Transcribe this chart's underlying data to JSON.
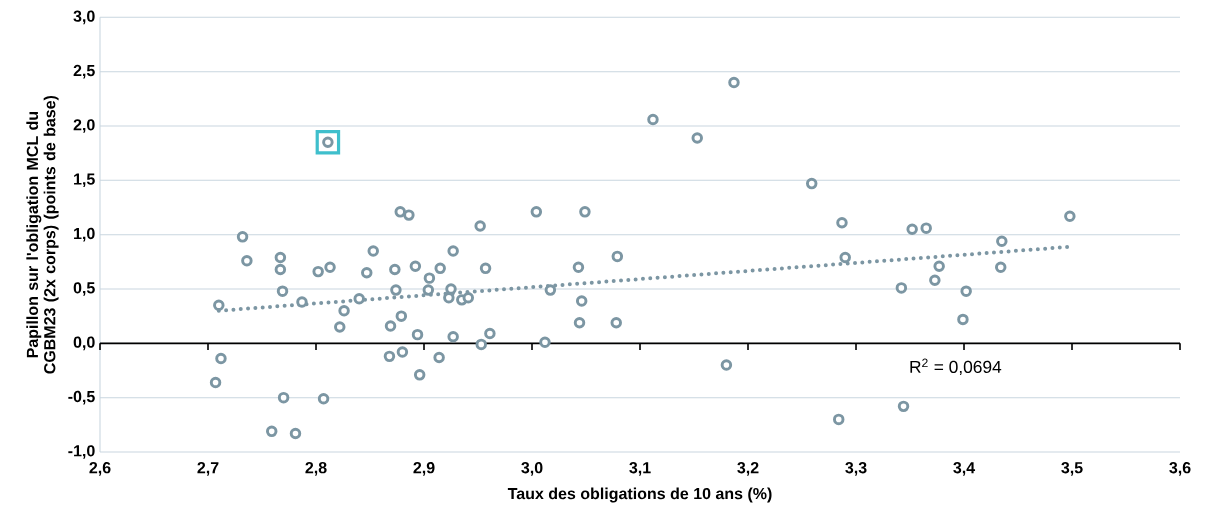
{
  "chart_data": {
    "type": "scatter",
    "xlabel": "Taux des obligations de 10 ans (%)",
    "ylabel": "Papillon sur l'obligation MCL du CGBM23 (2x corps) (points de base)",
    "xlim": [
      2.6,
      3.6
    ],
    "xticks": [
      {
        "value": 2.6,
        "label": "2,6"
      },
      {
        "value": 2.7,
        "label": "2,7"
      },
      {
        "value": 2.8,
        "label": "2,8"
      },
      {
        "value": 2.9,
        "label": "2,9"
      },
      {
        "value": 3.0,
        "label": "3,0"
      },
      {
        "value": 3.1,
        "label": "3,1"
      },
      {
        "value": 3.2,
        "label": "3,2"
      },
      {
        "value": 3.3,
        "label": "3,3"
      },
      {
        "value": 3.4,
        "label": "3,4"
      },
      {
        "value": 3.5,
        "label": "3,5"
      },
      {
        "value": 3.6,
        "label": "3,6"
      }
    ],
    "ylim": [
      -1,
      3
    ],
    "yticks": [
      {
        "value": -1,
        "label": "-1,0"
      },
      {
        "value": -0.5,
        "label": "-0,5"
      },
      {
        "value": 0,
        "label": "0,0"
      },
      {
        "value": 0.5,
        "label": "0,5"
      },
      {
        "value": 1,
        "label": "1,0"
      },
      {
        "value": 1.5,
        "label": "1,5"
      },
      {
        "value": 2,
        "label": "2,0"
      },
      {
        "value": 2.5,
        "label": "2,5"
      },
      {
        "value": 3,
        "label": "3,0"
      }
    ],
    "grid": "y",
    "marker": "circle",
    "series": [
      {
        "color": "#7c96a3",
        "x": [
          2.71,
          2.732,
          2.736,
          2.712,
          2.707,
          2.767,
          2.767,
          2.769,
          2.787,
          2.77,
          2.759,
          2.781,
          2.802,
          2.813,
          2.807,
          2.826,
          2.822,
          2.847,
          2.84,
          2.853,
          2.878,
          2.886,
          2.873,
          2.874,
          2.869,
          2.879,
          2.868,
          2.88,
          2.896,
          2.894,
          2.892,
          2.915,
          2.905,
          2.904,
          2.927,
          2.925,
          2.923,
          2.935,
          2.941,
          2.914,
          2.927,
          2.952,
          2.957,
          2.953,
          2.961,
          3.004,
          3.049,
          3.043,
          3.079,
          3.017,
          3.046,
          3.044,
          3.078,
          3.012,
          3.18,
          3.112,
          3.153,
          3.187,
          3.259,
          3.287,
          3.29,
          3.352,
          3.365,
          3.377,
          3.373,
          3.342,
          3.402,
          3.399,
          3.435,
          3.434,
          3.498,
          3.344,
          3.284,
          2.811
        ],
        "values": [
          0.35,
          0.98,
          0.76,
          -0.14,
          -0.36,
          0.79,
          0.68,
          0.48,
          0.38,
          -0.5,
          -0.81,
          -0.83,
          0.66,
          0.7,
          -0.51,
          0.3,
          0.15,
          0.65,
          0.41,
          0.85,
          1.21,
          1.18,
          0.68,
          0.49,
          0.16,
          0.25,
          -0.12,
          -0.08,
          -0.29,
          0.08,
          0.71,
          0.69,
          0.6,
          0.49,
          0.85,
          0.5,
          0.42,
          0.4,
          0.42,
          -0.13,
          0.06,
          1.08,
          0.69,
          -0.01,
          0.09,
          1.21,
          1.21,
          0.7,
          0.8,
          0.49,
          0.39,
          0.19,
          0.19,
          0.01,
          -0.2,
          2.06,
          1.89,
          2.4,
          1.47,
          1.11,
          0.79,
          1.05,
          1.06,
          0.71,
          0.58,
          0.51,
          0.48,
          0.22,
          0.94,
          0.7,
          1.17,
          -0.58,
          -0.7,
          1.85
        ]
      },
      {
        "color": "#3fbfcc",
        "marker": "square",
        "x": [
          2.811
        ],
        "values": [
          1.85
        ]
      },
      {
        "type": "line",
        "line_style": "dotted",
        "marker": "none",
        "color": "#7c96a3",
        "x": [
          2.71,
          3.5
        ],
        "values": [
          0.3,
          0.89
        ]
      }
    ],
    "annotations": [
      "R$^{2}$ = 0,0694"
    ]
  }
}
